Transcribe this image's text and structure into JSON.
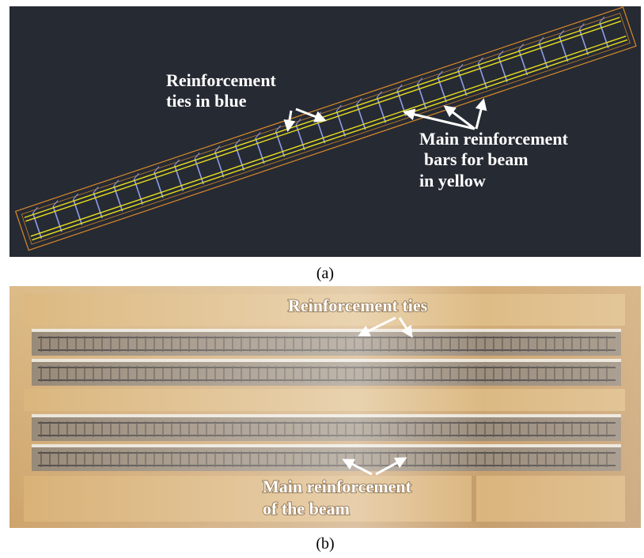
{
  "panel_a": {
    "annotations": [
      {
        "lines": [
          "Reinforcement",
          "ties in blue"
        ]
      },
      {
        "lines": [
          "Main reinforcement",
          "bars for beam",
          "in yellow"
        ]
      }
    ],
    "caption": "(a)"
  },
  "panel_b": {
    "annotations": [
      {
        "lines": [
          "Reinforcement ties"
        ]
      },
      {
        "lines": [
          "Main reinforcement",
          "of the beam"
        ]
      }
    ],
    "caption": "(b)"
  }
}
